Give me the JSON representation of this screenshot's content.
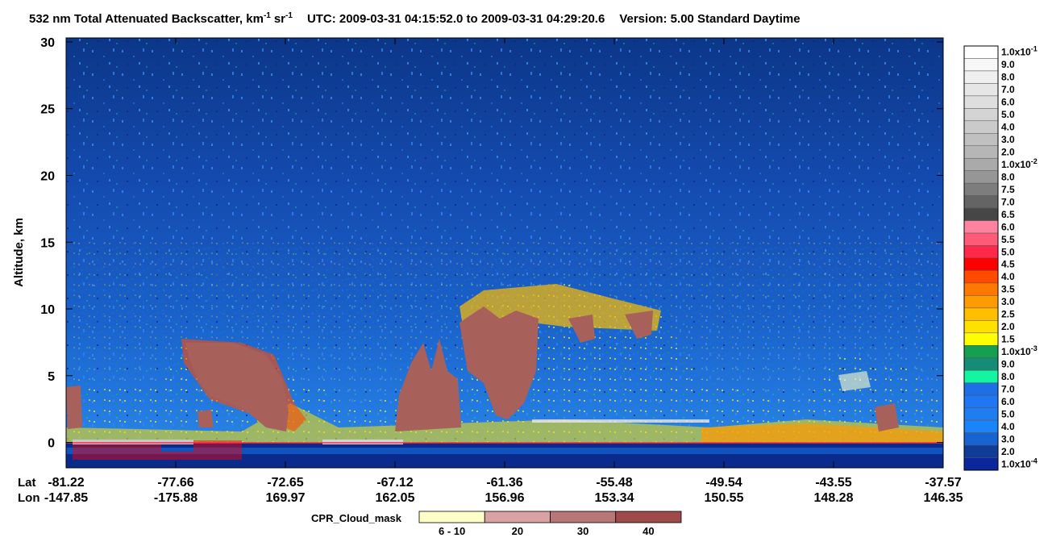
{
  "chart_data": {
    "type": "heatmap",
    "title": {
      "prefix": "532 nm Total Attenuated Backscatter, km",
      "exp1": "-1",
      "mid": "sr",
      "exp2": "-1",
      "utc": "UTC:  2009-03-31 04:15:52.0  to  2009-03-31 04:29:20.6",
      "version": "Version: 5.00  Standard  Daytime"
    },
    "ylabel": "Altitude, km",
    "ylim": [
      -1.9,
      30.3
    ],
    "yticks": [
      0,
      5,
      10,
      15,
      20,
      25,
      30
    ],
    "x_row_labels": [
      "Lat",
      "Lon"
    ],
    "x_ticks": [
      {
        "lat": "-81.22",
        "lon": "-147.85"
      },
      {
        "lat": "-77.66",
        "lon": "-175.88"
      },
      {
        "lat": "-72.65",
        "lon": "169.97"
      },
      {
        "lat": "-67.12",
        "lon": "162.05"
      },
      {
        "lat": "-61.36",
        "lon": "156.96"
      },
      {
        "lat": "-55.48",
        "lon": "153.34"
      },
      {
        "lat": "-49.54",
        "lon": "150.55"
      },
      {
        "lat": "-43.55",
        "lon": "148.28"
      },
      {
        "lat": "-37.57",
        "lon": "146.35"
      }
    ],
    "colorbar": [
      {
        "label": "1.0x10",
        "exp": "-1",
        "color": "#ffffff"
      },
      {
        "label": "9.0",
        "color": "#f7f7f7"
      },
      {
        "label": "8.0",
        "color": "#efefef"
      },
      {
        "label": "7.0",
        "color": "#e6e6e6"
      },
      {
        "label": "6.0",
        "color": "#dedede"
      },
      {
        "label": "5.0",
        "color": "#d4d4d4"
      },
      {
        "label": "4.0",
        "color": "#cacaca"
      },
      {
        "label": "3.0",
        "color": "#c0c0c0"
      },
      {
        "label": "2.0",
        "color": "#b6b6b6"
      },
      {
        "label": "1.0x10",
        "exp": "-2",
        "color": "#aaaaaa"
      },
      {
        "label": "8.0",
        "color": "#969696"
      },
      {
        "label": "7.5",
        "color": "#7d7d7d"
      },
      {
        "label": "7.0",
        "color": "#646464"
      },
      {
        "label": "6.5",
        "color": "#464646"
      },
      {
        "label": "6.0",
        "color": "#ff82a0"
      },
      {
        "label": "5.5",
        "color": "#ff5a78"
      },
      {
        "label": "5.0",
        "color": "#ff2848"
      },
      {
        "label": "4.5",
        "color": "#ff0000"
      },
      {
        "label": "4.0",
        "color": "#ff4a00"
      },
      {
        "label": "3.5",
        "color": "#ff7800"
      },
      {
        "label": "3.0",
        "color": "#ff9a00"
      },
      {
        "label": "2.5",
        "color": "#ffbe00"
      },
      {
        "label": "2.0",
        "color": "#ffe100"
      },
      {
        "label": "1.5",
        "color": "#ffff00"
      },
      {
        "label": "1.0x10",
        "exp": "-3",
        "color": "#14a050"
      },
      {
        "label": "9.0",
        "color": "#148c78"
      },
      {
        "label": "8.0",
        "color": "#14f5a0"
      },
      {
        "label": "7.0",
        "color": "#1e6ee6"
      },
      {
        "label": "6.0",
        "color": "#1e78f5"
      },
      {
        "label": "5.0",
        "color": "#1e7ef0"
      },
      {
        "label": "4.0",
        "color": "#1a84f8"
      },
      {
        "label": "3.0",
        "color": "#1464d2"
      },
      {
        "label": "2.0",
        "color": "#0f3c96"
      },
      {
        "label": "1.0x10",
        "exp": "-4",
        "color": "#0a289b"
      }
    ],
    "cloud_mask": {
      "title": "CPR_Cloud_mask",
      "entries": [
        {
          "label": "6 - 10",
          "color": "#ffffc8"
        },
        {
          "label": "20",
          "color": "#d9a3a3"
        },
        {
          "label": "30",
          "color": "#b87777"
        },
        {
          "label": "40",
          "color": "#9e4a4a"
        }
      ]
    }
  }
}
